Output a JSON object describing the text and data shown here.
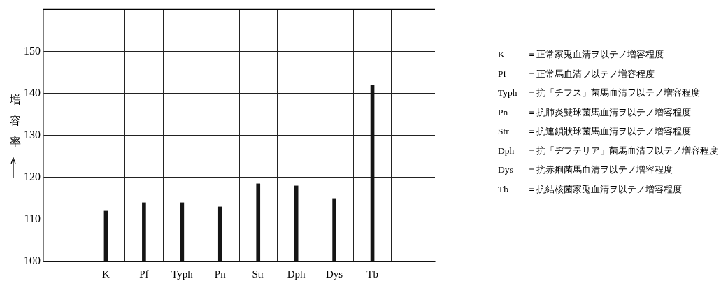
{
  "chart_data": {
    "type": "bar",
    "categories": [
      "K",
      "Pf",
      "Typh",
      "Pn",
      "Str",
      "Dph",
      "Dys",
      "Tb"
    ],
    "values": [
      112,
      114,
      114,
      113,
      118.5,
      118,
      115,
      142
    ],
    "color": "#151515",
    "ylim": [
      100,
      160
    ],
    "yticks": [
      100,
      110,
      120,
      130,
      140,
      150
    ],
    "grid": true,
    "legend": false,
    "ylabel": "増容率",
    "annotations": [
      "K　＝正常家兎血清ヲ以テノ増容程度",
      "Pf　＝正常馬血清ヲ以テノ増容程度",
      "Typh＝抗「チフス」菌馬血清ヲ以テノ増容程度",
      "Pn　＝抗肺炎雙球菌馬血清ヲ以テノ増容程度",
      "Str　＝抗連鎖狀球菌馬血清ヲ以テノ増容程度",
      "Dph　＝抗「ヂフテリア」菌馬血清ヲ以テノ増容程度",
      "Dys　＝抗赤痢菌馬血清ヲ以テノ増容程度",
      "Tb　＝抗結核菌家兎血清ヲ以テノ増容程度"
    ]
  }
}
